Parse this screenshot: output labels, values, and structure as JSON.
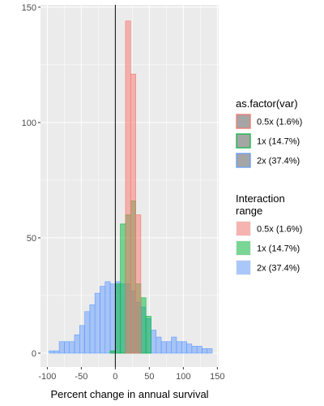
{
  "chart_data": {
    "type": "histogram",
    "xlabel": "Percent change in annual survival",
    "ylabel": "",
    "xlim": [
      -110,
      152
    ],
    "ylim": [
      -6,
      151
    ],
    "xticks": [
      -100,
      -50,
      0,
      50,
      100,
      150
    ],
    "xtick_labels": [
      "-100",
      "-50",
      "0",
      "50",
      "100",
      "150"
    ],
    "yticks": [
      0,
      50,
      100,
      150
    ],
    "ytick_labels": [
      "0",
      "50",
      "100",
      "150"
    ],
    "vline_x": 0,
    "bin_width": 7.5,
    "grid": true,
    "legend_placement": "right",
    "series": [
      {
        "label": "2x (37.4%)",
        "color": "#619CFF",
        "bins": [
          [
            -105,
            0
          ],
          [
            -97.5,
            1
          ],
          [
            -90,
            1
          ],
          [
            -82.5,
            5
          ],
          [
            -75,
            5
          ],
          [
            -67.5,
            5
          ],
          [
            -60,
            8
          ],
          [
            -52.5,
            12
          ],
          [
            -45,
            18
          ],
          [
            -37.5,
            21
          ],
          [
            -30,
            26
          ],
          [
            -22.5,
            29
          ],
          [
            -15,
            31
          ],
          [
            -7.5,
            30
          ],
          [
            0,
            31
          ],
          [
            7.5,
            30
          ],
          [
            15,
            30
          ],
          [
            22.5,
            27
          ],
          [
            30,
            22
          ],
          [
            37.5,
            20
          ],
          [
            45,
            15
          ],
          [
            52.5,
            10
          ],
          [
            60,
            7
          ],
          [
            67.5,
            5
          ],
          [
            75,
            5
          ],
          [
            82.5,
            7
          ],
          [
            90,
            5
          ],
          [
            97.5,
            5
          ],
          [
            105,
            4
          ],
          [
            112.5,
            3
          ],
          [
            120,
            3
          ],
          [
            127.5,
            2
          ],
          [
            135,
            2
          ]
        ]
      },
      {
        "label": "1x (14.7%)",
        "color": "#00BA38",
        "bins": [
          [
            -7.5,
            1
          ],
          [
            0,
            30
          ],
          [
            7.5,
            56
          ],
          [
            15,
            60
          ],
          [
            22.5,
            66
          ],
          [
            30,
            30
          ],
          [
            37.5,
            24
          ],
          [
            45,
            16
          ]
        ]
      },
      {
        "label": "0.5x (1.6%)",
        "color": "#F8766D",
        "bins": [
          [
            15,
            144
          ],
          [
            22.5,
            121
          ],
          [
            30,
            60
          ]
        ]
      }
    ],
    "legends": [
      {
        "title_lines": [
          "as.factor(var)"
        ],
        "style": "outline",
        "entries": [
          {
            "label": "0.5x (1.6%)",
            "color": "#F8766D"
          },
          {
            "label": "1x (14.7%)",
            "color": "#00BA38"
          },
          {
            "label": "2x (37.4%)",
            "color": "#619CFF"
          }
        ]
      },
      {
        "title_lines": [
          "Interaction",
          "range"
        ],
        "style": "fill",
        "entries": [
          {
            "label": "0.5x (1.6%)",
            "color": "#F8766D"
          },
          {
            "label": "1x (14.7%)",
            "color": "#00BA38"
          },
          {
            "label": "2x (37.4%)",
            "color": "#619CFF"
          }
        ]
      }
    ]
  }
}
